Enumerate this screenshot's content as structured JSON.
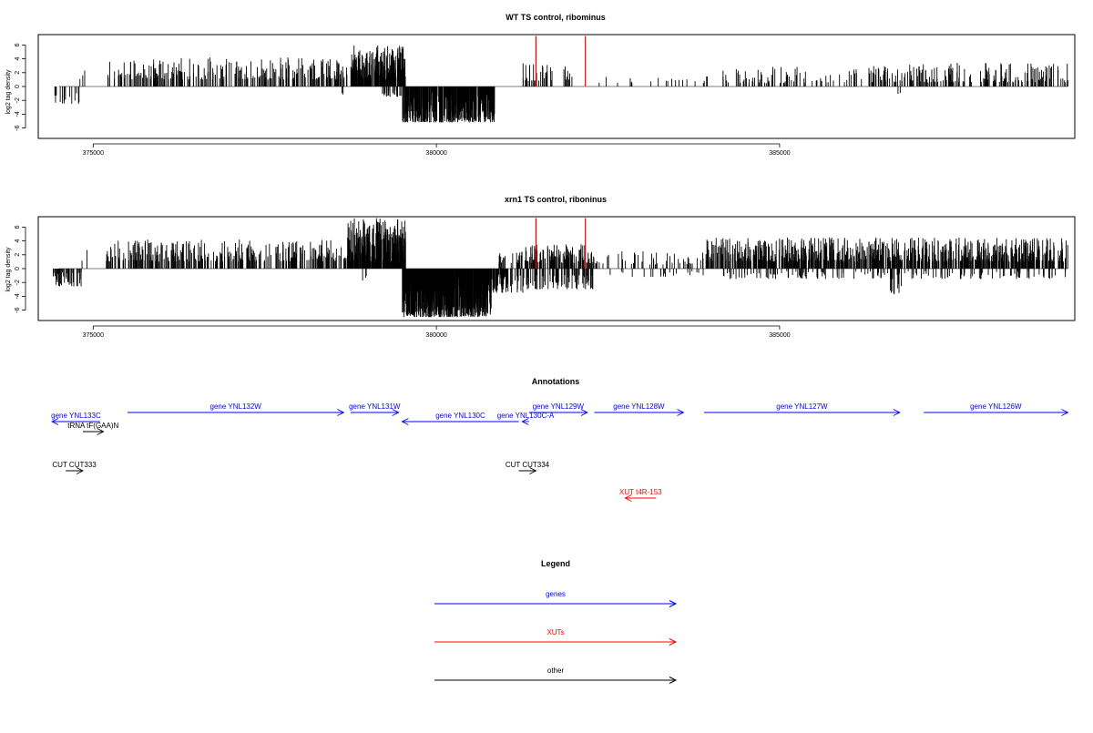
{
  "chart_data": [
    {
      "type": "bar",
      "title": "WT TS control, ribominus",
      "ylabel": "log2 tag density",
      "xlim": [
        374200,
        389300
      ],
      "ylim": [
        -7.5,
        7.5
      ],
      "yticks": [
        -6,
        -4,
        -2,
        0,
        2,
        4,
        6
      ],
      "xticks": [
        375000,
        380000,
        385000
      ],
      "highlight_color": "#ff0000",
      "highlights": [
        {
          "x": 381450,
          "y": 7.3
        },
        {
          "x": 382170,
          "y": 7.3
        }
      ],
      "regions": [
        {
          "start": 374400,
          "end": 374900,
          "min": -2.5,
          "max": -0.5,
          "density": 4,
          "seed": 11
        },
        {
          "start": 374800,
          "end": 375000,
          "min": 1.0,
          "max": 4.0,
          "density": 2,
          "seed": 12
        },
        {
          "start": 375200,
          "end": 378700,
          "min": 1.0,
          "max": 4.2,
          "density": 10,
          "seed": 13
        },
        {
          "start": 378600,
          "end": 378700,
          "min": -1.2,
          "max": -0.6,
          "density": 2,
          "seed": 14
        },
        {
          "start": 378750,
          "end": 379550,
          "min": 1.0,
          "max": 6.0,
          "density": 40,
          "seed": 15
        },
        {
          "start": 379200,
          "end": 379500,
          "min": -1.5,
          "max": -0.5,
          "density": 10,
          "seed": 16
        },
        {
          "start": 379500,
          "end": 380850,
          "min": -5.2,
          "max": -0.8,
          "density": 40,
          "seed": 17
        },
        {
          "start": 381250,
          "end": 381700,
          "min": 0.8,
          "max": 3.5,
          "density": 10,
          "seed": 18
        },
        {
          "start": 381850,
          "end": 382000,
          "min": 1.0,
          "max": 3.0,
          "density": 8,
          "seed": 19
        },
        {
          "start": 382200,
          "end": 384000,
          "min": 0.5,
          "max": 1.5,
          "density": 1.5,
          "seed": 20
        },
        {
          "start": 384100,
          "end": 386200,
          "min": 0.5,
          "max": 3.0,
          "density": 5,
          "seed": 21
        },
        {
          "start": 386300,
          "end": 387300,
          "min": 0.6,
          "max": 3.2,
          "density": 10,
          "seed": 22
        },
        {
          "start": 386700,
          "end": 386800,
          "min": -1.2,
          "max": -0.5,
          "density": 2,
          "seed": 23
        },
        {
          "start": 387300,
          "end": 389200,
          "min": 0.6,
          "max": 3.5,
          "density": 8,
          "seed": 24
        }
      ]
    },
    {
      "type": "bar",
      "title": "xrn1 TS control, riboninus",
      "ylabel": "log2 tag density",
      "xlim": [
        374200,
        389300
      ],
      "ylim": [
        -7.5,
        7.5
      ],
      "yticks": [
        -6,
        -4,
        -2,
        0,
        2,
        4,
        6
      ],
      "xticks": [
        375000,
        380000,
        385000
      ],
      "highlight_color": "#ff0000",
      "highlights": [
        {
          "x": 381450,
          "y": 7.3
        },
        {
          "x": 382170,
          "y": 7.3
        }
      ],
      "regions": [
        {
          "start": 374400,
          "end": 374850,
          "min": -2.6,
          "max": -0.5,
          "density": 12,
          "seed": 31
        },
        {
          "start": 374800,
          "end": 374950,
          "min": 1.0,
          "max": 3.2,
          "density": 2,
          "seed": 32
        },
        {
          "start": 375150,
          "end": 378700,
          "min": 1.0,
          "max": 4.2,
          "density": 12,
          "seed": 33
        },
        {
          "start": 378700,
          "end": 379550,
          "min": 1.0,
          "max": 7.3,
          "density": 45,
          "seed": 34
        },
        {
          "start": 378900,
          "end": 379000,
          "min": -2.0,
          "max": -1.0,
          "density": 4,
          "seed": 35
        },
        {
          "start": 379500,
          "end": 380800,
          "min": -7.0,
          "max": -1.0,
          "density": 60,
          "seed": 36
        },
        {
          "start": 380800,
          "end": 381300,
          "min": -3.5,
          "max": -0.8,
          "density": 15,
          "seed": 37
        },
        {
          "start": 380900,
          "end": 381300,
          "min": 0.8,
          "max": 2.5,
          "density": 8,
          "seed": 38
        },
        {
          "start": 381300,
          "end": 382300,
          "min": 0.8,
          "max": 3.5,
          "density": 18,
          "seed": 39
        },
        {
          "start": 381300,
          "end": 382300,
          "min": -3.0,
          "max": -0.8,
          "density": 10,
          "seed": 40
        },
        {
          "start": 382300,
          "end": 383900,
          "min": 0.6,
          "max": 2.5,
          "density": 4,
          "seed": 41
        },
        {
          "start": 382500,
          "end": 383900,
          "min": -1.2,
          "max": -0.4,
          "density": 2,
          "seed": 42
        },
        {
          "start": 383900,
          "end": 389200,
          "min": 1.0,
          "max": 4.5,
          "density": 20,
          "seed": 43
        },
        {
          "start": 384000,
          "end": 389200,
          "min": -1.5,
          "max": -0.4,
          "density": 4,
          "seed": 44
        },
        {
          "start": 386550,
          "end": 386850,
          "min": -3.8,
          "max": -2.2,
          "density": 4,
          "seed": 45
        }
      ]
    }
  ],
  "annotations": {
    "title": "Annotations",
    "items": [
      {
        "label": "gene YNL133C",
        "start": 374400,
        "end": 375100,
        "dir": "left",
        "color": "#0000ff",
        "row": 0
      },
      {
        "label": "tRNA tF(GAA)N",
        "start": 375150,
        "end": 374850,
        "dir": "right",
        "color": "#000000",
        "row": 1
      },
      {
        "label": "gene YNL132W",
        "start": 375500,
        "end": 378650,
        "dir": "right",
        "color": "#0000ff",
        "row": -1
      },
      {
        "label": "gene YNL131W",
        "start": 378750,
        "end": 379450,
        "dir": "right",
        "color": "#0000ff",
        "row": -1
      },
      {
        "label": "gene YNL130C",
        "start": 379500,
        "end": 381200,
        "dir": "left",
        "color": "#0000ff",
        "row": 0
      },
      {
        "label": "gene YNL130C-A",
        "start": 381250,
        "end": 381350,
        "dir": "left",
        "color": "#0000ff",
        "row": 0
      },
      {
        "label": "gene YNL129W",
        "start": 381350,
        "end": 382200,
        "dir": "right",
        "color": "#0000ff",
        "row": -1
      },
      {
        "label": "gene YNL128W",
        "start": 382300,
        "end": 383600,
        "dir": "right",
        "color": "#0000ff",
        "row": -1
      },
      {
        "label": "gene YNL127W",
        "start": 383900,
        "end": 386750,
        "dir": "right",
        "color": "#0000ff",
        "row": -1
      },
      {
        "label": "gene YNL126W",
        "start": 387100,
        "end": 389200,
        "dir": "right",
        "color": "#0000ff",
        "row": -1
      },
      {
        "label": "CUT CUT333",
        "start": 374600,
        "end": 374850,
        "dir": "right",
        "color": "#000000",
        "row": 2
      },
      {
        "label": "CUT CUT334",
        "start": 381200,
        "end": 381450,
        "dir": "right",
        "color": "#000000",
        "row": 2
      },
      {
        "label": "XUT t4R-153",
        "start": 382750,
        "end": 383200,
        "dir": "left",
        "color": "#ff0000",
        "row": 3
      }
    ]
  },
  "legend": {
    "title": "Legend",
    "entries": [
      {
        "label": "genes",
        "color": "#0000ff"
      },
      {
        "label": "XUTs",
        "color": "#ff0000"
      },
      {
        "label": "other",
        "color": "#000000"
      }
    ]
  }
}
